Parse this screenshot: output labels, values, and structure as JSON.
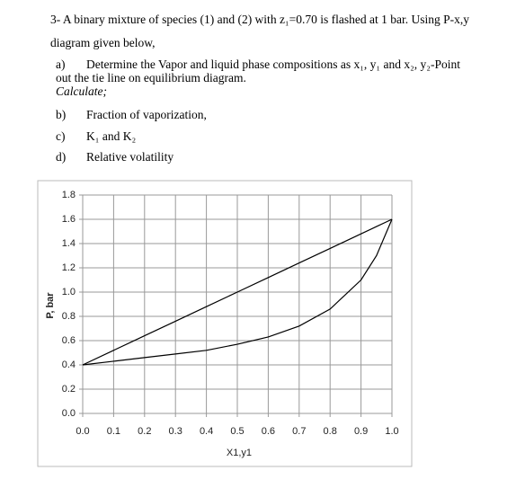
{
  "document": {
    "question": [
      "3- A binary mixture of species (1) and (2) with z₁=0.70 is flashed at 1 bar. Using P-x,y",
      "diagram given below,"
    ],
    "calculate": "Calculate;",
    "items": [
      {
        "label": "a)",
        "text": "Determine the Vapor and liquid phase compositions as x₁, y₁ and x₂, y₂-Point",
        "continuation": "out the tie line on equilibrium diagram."
      },
      {
        "label": "b)",
        "text": "Fraction of vaporization,"
      },
      {
        "label": "c)",
        "text": "K₁ and K₂"
      },
      {
        "label": "d)",
        "text": "Relative volatility"
      }
    ]
  },
  "chart_data": {
    "type": "line",
    "x_label": "X1,y1",
    "y_label": "P, bar",
    "x": [
      0,
      0.1,
      0.2,
      0.3,
      0.4,
      0.5,
      0.6,
      0.7,
      0.8,
      0.9,
      0.95,
      1
    ],
    "series": [
      {
        "color": "#000000",
        "values": [
          0.4,
          0.52,
          0.64,
          0.76,
          0.88,
          1.0,
          1.12,
          1.24,
          1.36,
          1.48,
          1.54,
          1.6
        ]
      },
      {
        "color": "#000000",
        "values": [
          0.4,
          0.43,
          0.46,
          0.49,
          0.52,
          0.57,
          0.63,
          0.72,
          0.86,
          1.1,
          1.3,
          1.6
        ]
      }
    ],
    "xlim": [
      0,
      1
    ],
    "ylim": [
      0,
      1.8
    ],
    "xticks": [
      {
        "value": 0,
        "label": "0.0"
      },
      0.1,
      0.2,
      0.3,
      0.4,
      0.5,
      0.6,
      0.7,
      0.8,
      0.9,
      {
        "value": 1,
        "label": "1.0"
      }
    ],
    "yticks": [
      {
        "value": 0,
        "label": "0.0"
      },
      0.2,
      0.4,
      0.6,
      0.8,
      {
        "value": 1,
        "label": "1.0"
      },
      1.2,
      1.4,
      1.6,
      1.8
    ],
    "grid": true
  }
}
